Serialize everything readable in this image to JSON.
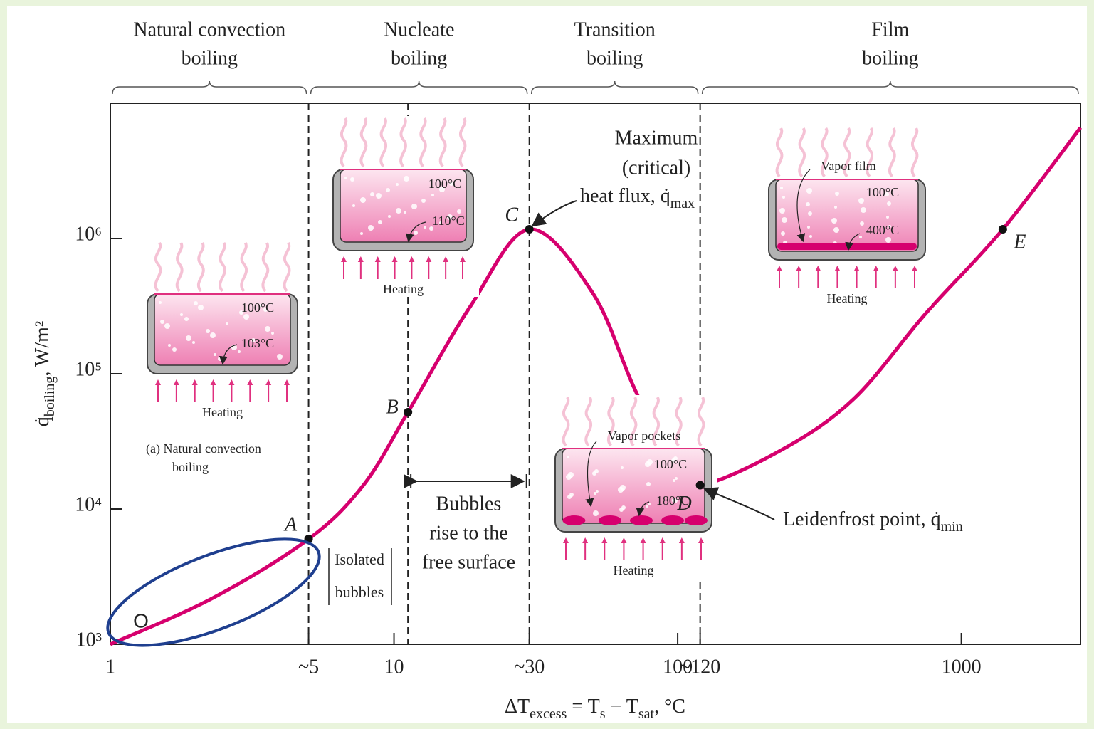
{
  "chart_data": {
    "type": "line",
    "x_log": true,
    "y_log": true,
    "grid": false,
    "xlim": [
      1,
      2630
    ],
    "ylim": [
      1000,
      10000000
    ],
    "xticks": [
      1,
      {
        "value": 5,
        "label": "~5"
      },
      10,
      {
        "value": 30,
        "label": "~30"
      },
      100,
      {
        "value": 120,
        "label": "~120"
      },
      1000
    ],
    "yticks": [
      {
        "value": 1000,
        "label": "10³"
      },
      {
        "value": 10000,
        "label": "10⁴"
      },
      {
        "value": 100000,
        "label": "10⁵"
      },
      {
        "value": 1000000,
        "label": "10⁶"
      }
    ],
    "x_label": [
      "ΔT",
      "excess",
      " = T",
      "s",
      " − T",
      "sat",
      ", °C"
    ],
    "y_label": [
      "q̇",
      "boiling",
      ", W/m²"
    ],
    "series": [
      {
        "color": "#d6006e",
        "x": [
          1,
          2.3,
          5,
          7.8,
          11.2,
          18.6,
          30,
          50,
          70,
          95,
          120,
          237,
          420,
          750,
          1400,
          2630
        ],
        "values": [
          1000,
          2200,
          6000,
          15000,
          52000,
          316000,
          1170000,
          400000,
          80000,
          22000,
          15000,
          28000,
          66000,
          280000,
          1170000,
          6600000
        ]
      }
    ],
    "points": [
      {
        "label": "A",
        "x": 5,
        "y": 6000
      },
      {
        "label": "B",
        "x": 11.2,
        "y": 52000
      },
      {
        "label": "C",
        "x": 30,
        "y": 1170000
      },
      {
        "label": "D",
        "x": 120,
        "y": 15000
      },
      {
        "label": "E",
        "x": 1400,
        "y": 1170000
      }
    ],
    "boundaries": [
      5,
      30,
      120
    ],
    "regions": [
      {
        "lines": [
          "Natural convection",
          "boiling"
        ]
      },
      {
        "lines": [
          "Nucleate",
          "boiling"
        ]
      },
      {
        "lines": [
          "Transition",
          "boiling"
        ]
      },
      {
        "lines": [
          "Film",
          "boiling"
        ]
      }
    ],
    "annotations": {
      "max_flux": [
        "Maximum",
        "(critical)"
      ],
      "max_flux_label": [
        "heat flux, ",
        "q̇",
        "max"
      ],
      "leidenfrost": [
        "Leidenfrost point, ",
        "q̇",
        "min"
      ],
      "bubbles_rise": [
        "Bubbles",
        "rise to the",
        "free surface"
      ],
      "isolated": [
        "Isolated",
        "bubbles"
      ],
      "origin": "O"
    },
    "pots": [
      {
        "labels": [
          "100°C",
          "103°C"
        ],
        "caption": "Heating",
        "note": [
          "(a) Natural convection",
          "boiling"
        ]
      },
      {
        "labels": [
          "100°C",
          "110°C"
        ],
        "caption": "Heating"
      },
      {
        "labels": [
          "Vapor pockets",
          "100°C",
          "180°C"
        ],
        "caption": "Heating"
      },
      {
        "labels": [
          "Vapor film",
          "100°C",
          "400°C"
        ],
        "caption": "Heating"
      }
    ]
  }
}
